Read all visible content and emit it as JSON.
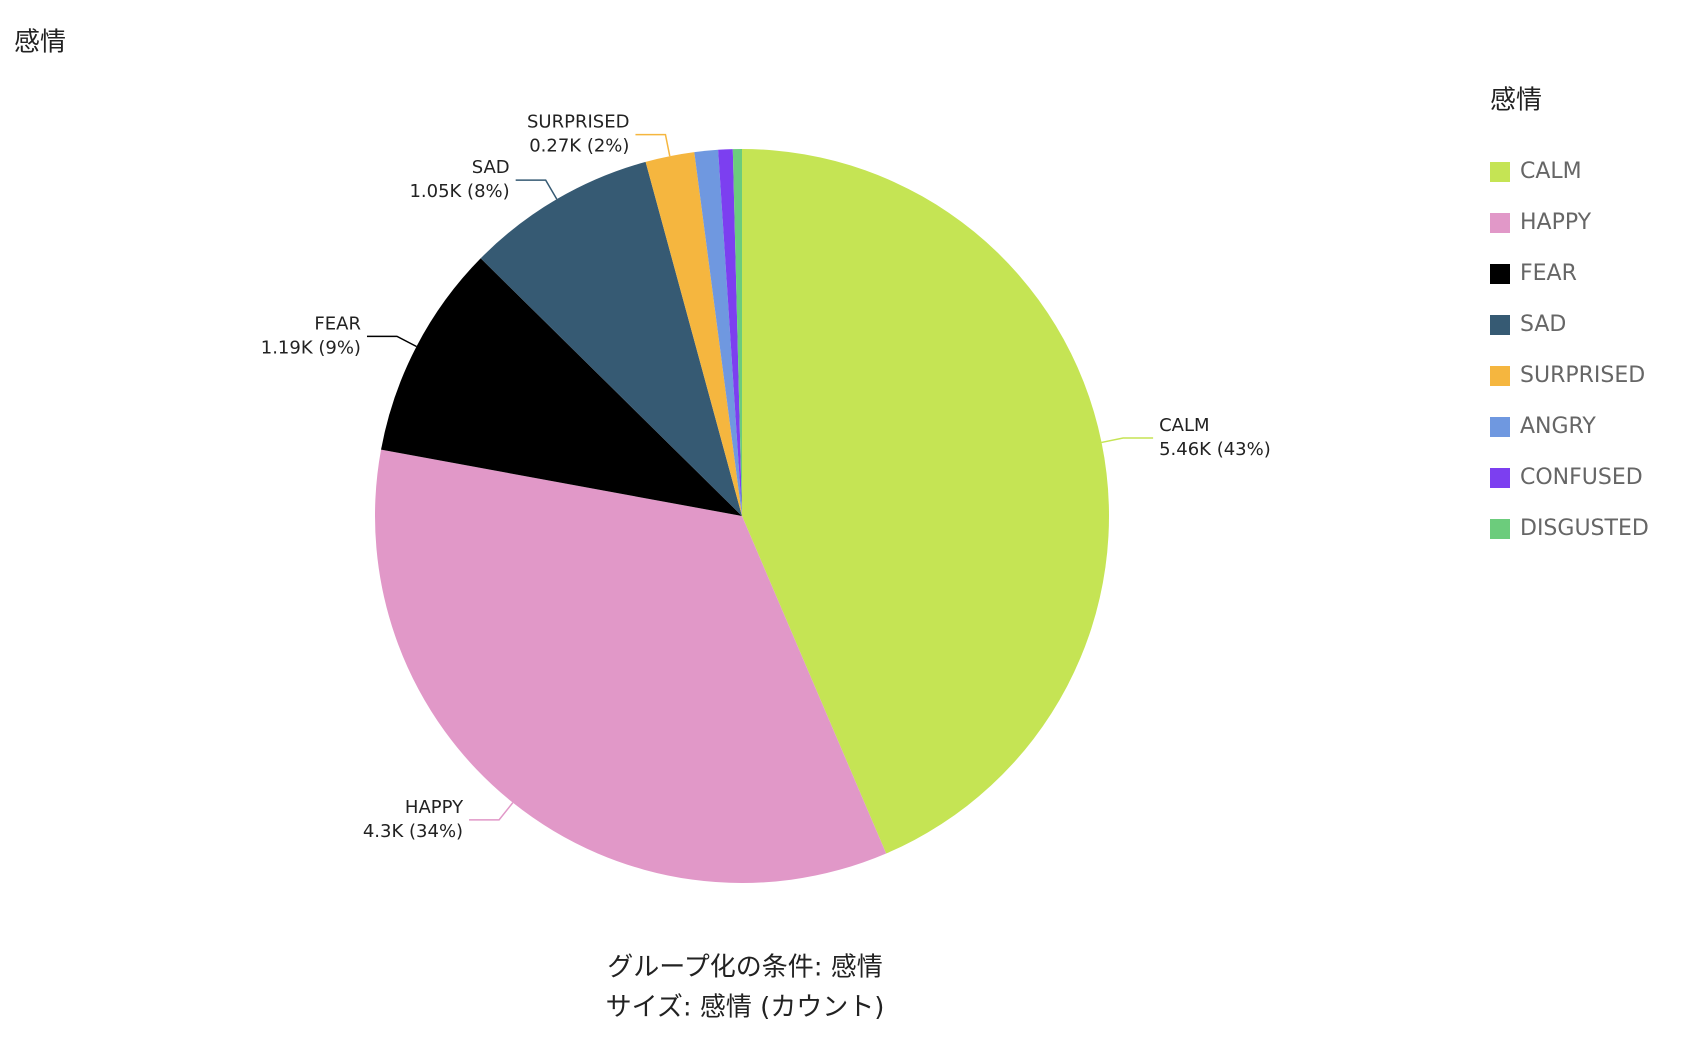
{
  "chart_data": {
    "type": "pie",
    "title": "感情",
    "categories": [
      "CALM",
      "HAPPY",
      "FEAR",
      "SAD",
      "SURPRISED",
      "ANGRY",
      "CONFUSED",
      "DISGUSTED"
    ],
    "values": [
      5460,
      4300,
      1190,
      1050,
      270,
      130,
      80,
      50
    ],
    "value_labels": [
      "5.46K (43%)",
      "4.3K (34%)",
      "1.19K (9%)",
      "1.05K (8%)",
      "0.27K (2%)",
      null,
      null,
      null
    ],
    "colors": [
      "#c5e454",
      "#e198c8",
      "#000000",
      "#365a73",
      "#f5b63f",
      "#6f98e0",
      "#7c3ff0",
      "#6ccc7c"
    ],
    "legend_title": "感情",
    "legend_position": "right",
    "footer": [
      "グループ化の条件: 感情",
      "サイズ: 感情 (カウント)"
    ]
  }
}
